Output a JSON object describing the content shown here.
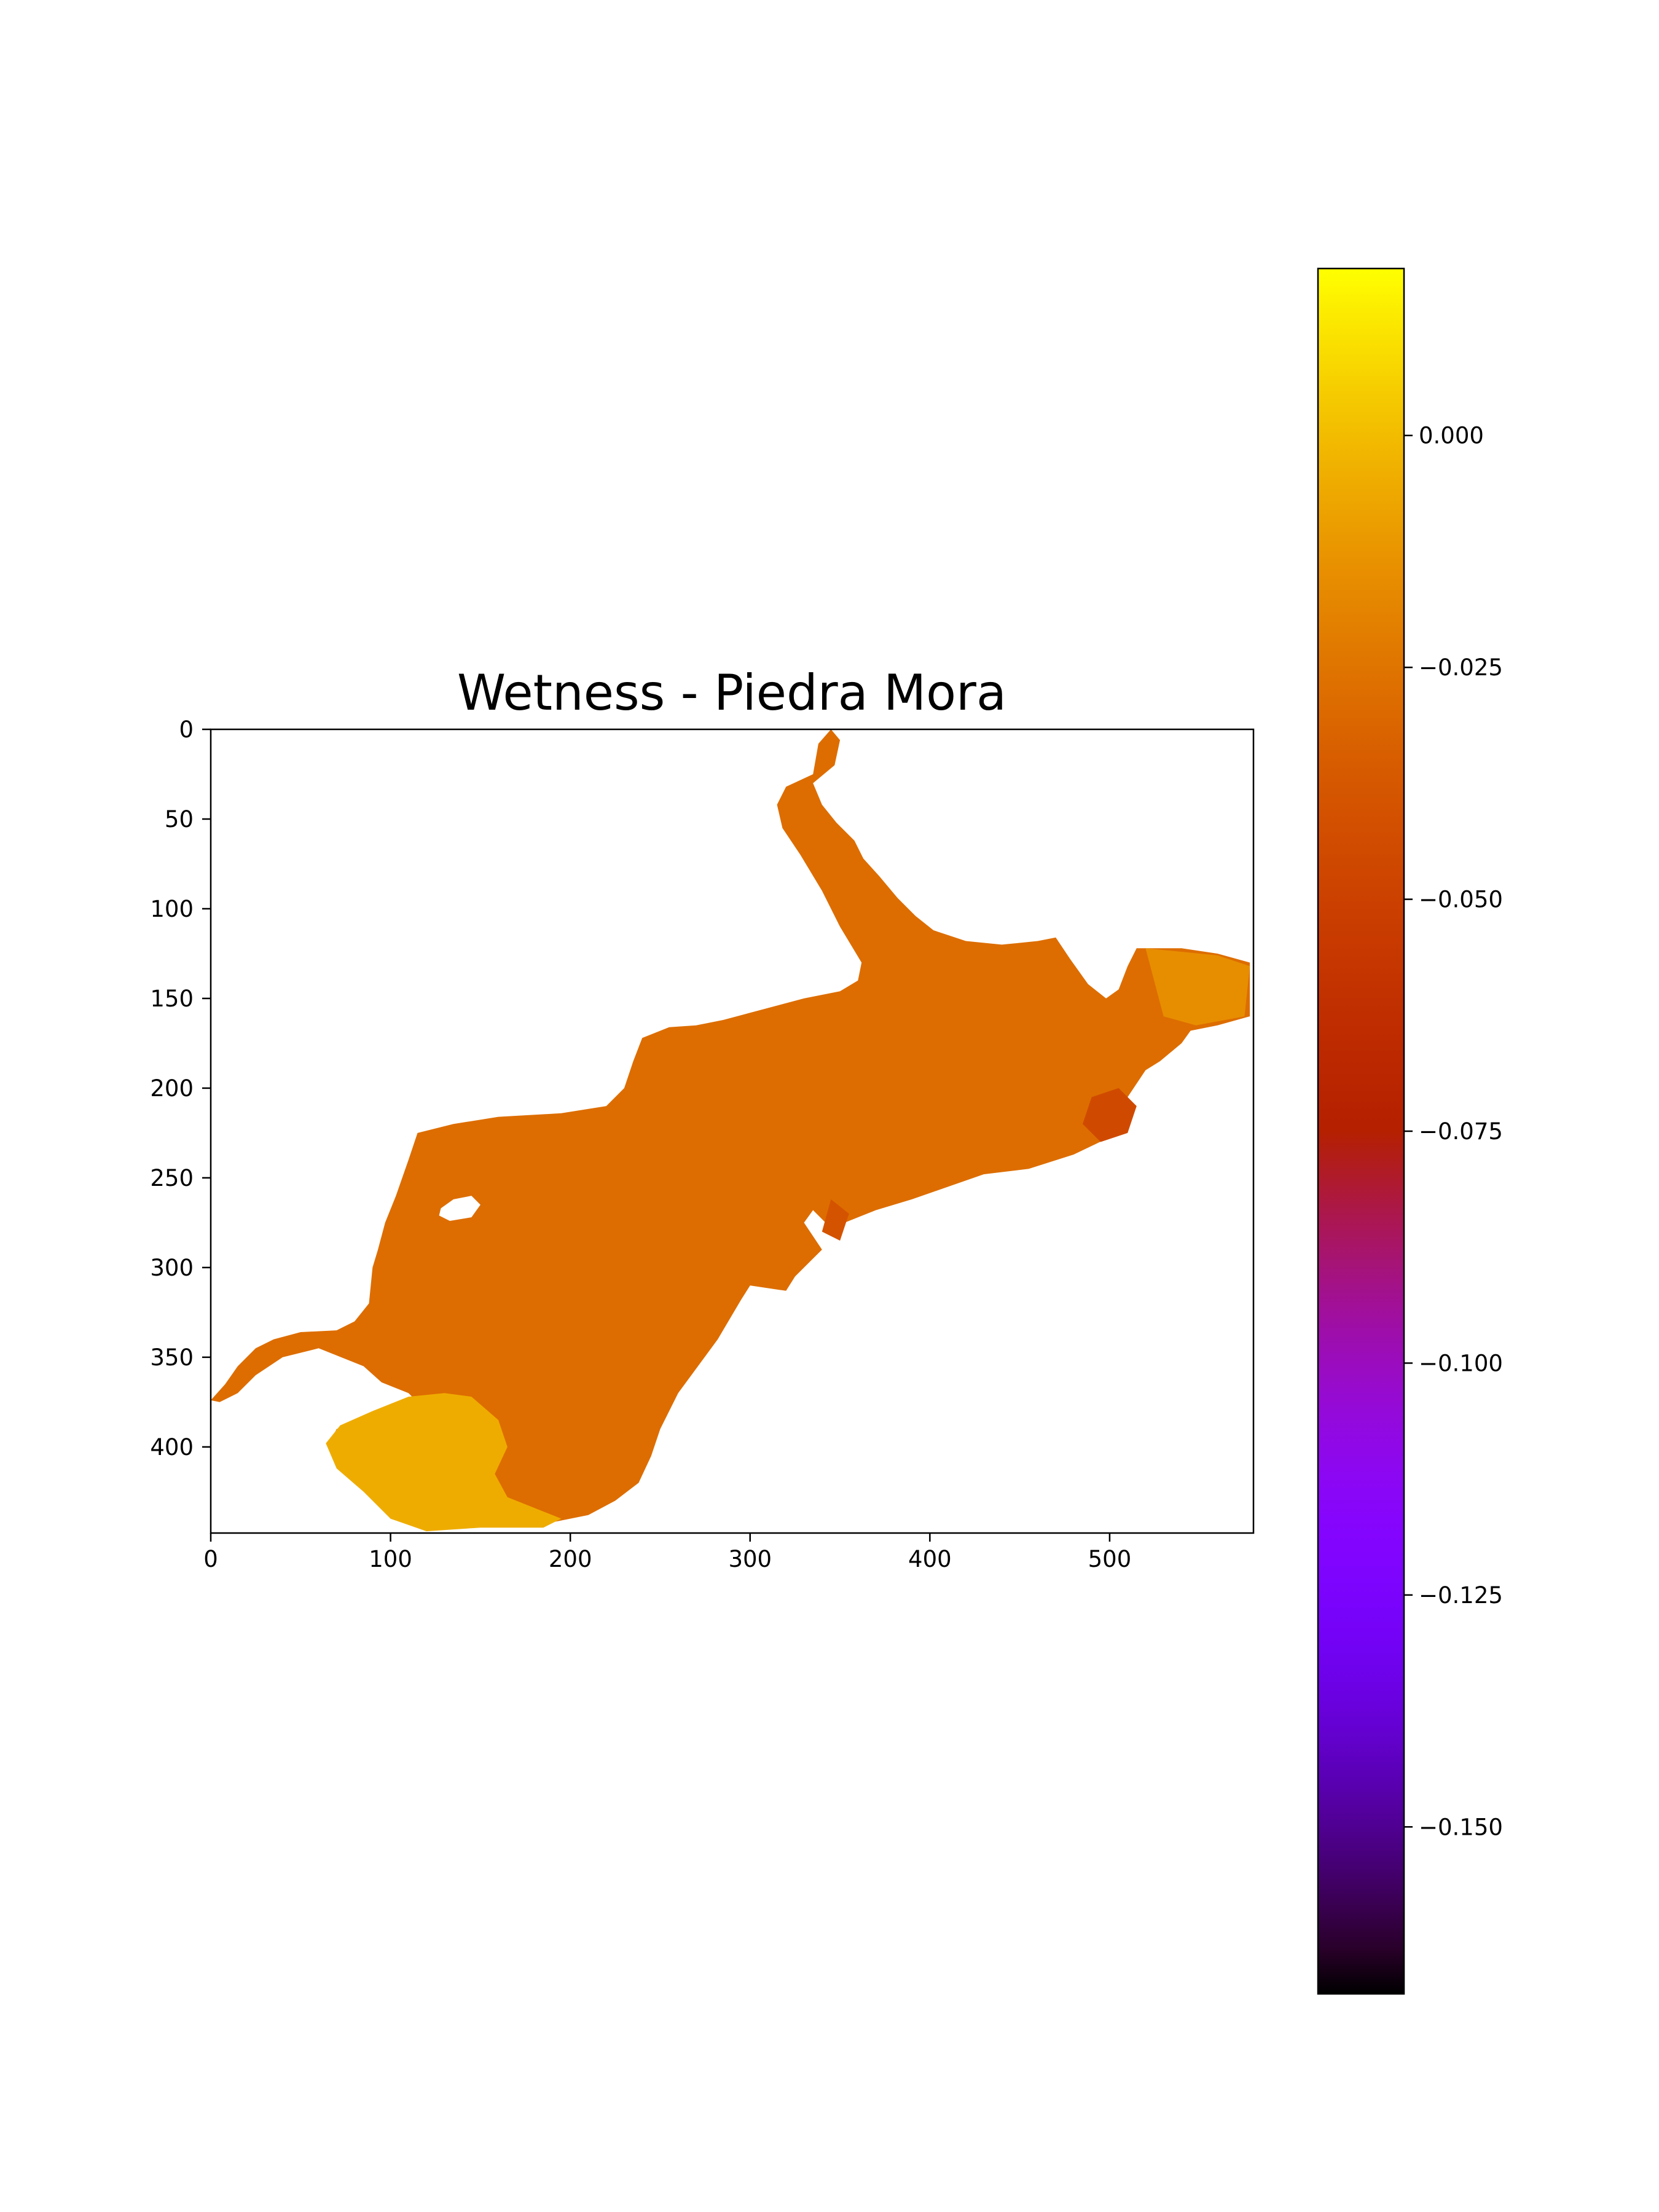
{
  "chart_data": {
    "type": "heatmap",
    "title": "Wetness - Piedra Mora",
    "xlabel": "",
    "ylabel": "",
    "x_ticks": [
      0,
      100,
      200,
      300,
      400,
      500
    ],
    "y_ticks": [
      0,
      50,
      100,
      150,
      200,
      250,
      300,
      350,
      400
    ],
    "xlim": [
      0,
      580
    ],
    "ylim": [
      448,
      0
    ],
    "colormap": "gnuplot",
    "colorbar": {
      "range": [
        -0.168,
        0.018
      ],
      "ticks": [
        0.0,
        -0.025,
        -0.05,
        -0.075,
        -0.1,
        -0.125,
        -0.15
      ],
      "tick_labels": [
        "0.000",
        "−0.025",
        "−0.050",
        "−0.075",
        "−0.100",
        "−0.125",
        "−0.150"
      ]
    },
    "typical_value": -0.025,
    "value_range": [
      -0.06,
      0.0
    ],
    "regions": [
      {
        "name": "lake-main-body",
        "value": -0.028,
        "outline": [
          [
            345,
            0
          ],
          [
            350,
            6
          ],
          [
            347,
            20
          ],
          [
            335,
            30
          ],
          [
            340,
            42
          ],
          [
            348,
            52
          ],
          [
            358,
            62
          ],
          [
            363,
            72
          ],
          [
            372,
            82
          ],
          [
            382,
            94
          ],
          [
            392,
            104
          ],
          [
            402,
            112
          ],
          [
            420,
            118
          ],
          [
            440,
            120
          ],
          [
            460,
            118
          ],
          [
            470,
            116
          ],
          [
            478,
            128
          ],
          [
            488,
            142
          ],
          [
            498,
            150
          ],
          [
            505,
            145
          ],
          [
            510,
            132
          ],
          [
            515,
            122
          ],
          [
            540,
            122
          ],
          [
            560,
            125
          ],
          [
            578,
            130
          ],
          [
            578,
            160
          ],
          [
            560,
            165
          ],
          [
            545,
            168
          ],
          [
            540,
            175
          ],
          [
            528,
            185
          ],
          [
            520,
            190
          ],
          [
            510,
            205
          ],
          [
            505,
            225
          ],
          [
            480,
            237
          ],
          [
            455,
            245
          ],
          [
            430,
            248
          ],
          [
            410,
            255
          ],
          [
            390,
            262
          ],
          [
            370,
            268
          ],
          [
            345,
            278
          ],
          [
            335,
            268
          ],
          [
            330,
            275
          ],
          [
            340,
            290
          ],
          [
            325,
            305
          ],
          [
            320,
            313
          ],
          [
            300,
            310
          ],
          [
            295,
            318
          ],
          [
            282,
            340
          ],
          [
            260,
            370
          ],
          [
            250,
            390
          ],
          [
            245,
            405
          ],
          [
            238,
            420
          ],
          [
            225,
            430
          ],
          [
            210,
            438
          ],
          [
            190,
            442
          ],
          [
            180,
            434
          ],
          [
            160,
            432
          ],
          [
            135,
            430
          ],
          [
            115,
            445
          ],
          [
            100,
            440
          ],
          [
            95,
            430
          ],
          [
            85,
            415
          ],
          [
            70,
            410
          ],
          [
            65,
            400
          ],
          [
            70,
            390
          ],
          [
            80,
            387
          ],
          [
            95,
            380
          ],
          [
            115,
            375
          ],
          [
            110,
            370
          ],
          [
            95,
            364
          ],
          [
            85,
            355
          ],
          [
            60,
            345
          ],
          [
            40,
            350
          ],
          [
            25,
            360
          ],
          [
            15,
            370
          ],
          [
            5,
            375
          ],
          [
            0,
            374
          ],
          [
            8,
            365
          ],
          [
            15,
            355
          ],
          [
            25,
            345
          ],
          [
            35,
            340
          ],
          [
            50,
            336
          ],
          [
            70,
            335
          ],
          [
            80,
            330
          ],
          [
            88,
            320
          ],
          [
            90,
            300
          ],
          [
            93,
            290
          ],
          [
            97,
            275
          ],
          [
            103,
            260
          ],
          [
            110,
            240
          ],
          [
            115,
            225
          ],
          [
            135,
            220
          ],
          [
            160,
            216
          ],
          [
            195,
            214
          ],
          [
            220,
            210
          ],
          [
            230,
            200
          ],
          [
            235,
            185
          ],
          [
            240,
            172
          ],
          [
            255,
            166
          ],
          [
            270,
            165
          ],
          [
            285,
            162
          ],
          [
            300,
            158
          ],
          [
            330,
            150
          ],
          [
            350,
            146
          ],
          [
            360,
            140
          ],
          [
            362,
            130
          ],
          [
            350,
            110
          ],
          [
            340,
            90
          ],
          [
            328,
            70
          ],
          [
            318,
            55
          ],
          [
            315,
            42
          ],
          [
            320,
            32
          ],
          [
            335,
            25
          ],
          [
            338,
            8
          ]
        ]
      },
      {
        "name": "southern-cove",
        "value": -0.005,
        "outline": [
          [
            90,
            380
          ],
          [
            110,
            372
          ],
          [
            130,
            370
          ],
          [
            145,
            372
          ],
          [
            160,
            385
          ],
          [
            165,
            400
          ],
          [
            158,
            415
          ],
          [
            165,
            428
          ],
          [
            180,
            434
          ],
          [
            195,
            440
          ],
          [
            185,
            445
          ],
          [
            150,
            445
          ],
          [
            120,
            447
          ],
          [
            100,
            440
          ],
          [
            85,
            425
          ],
          [
            70,
            412
          ],
          [
            64,
            398
          ],
          [
            72,
            388
          ]
        ]
      },
      {
        "name": "island-hole",
        "value": null,
        "outline": [
          [
            128,
            267
          ],
          [
            135,
            262
          ],
          [
            145,
            260
          ],
          [
            150,
            265
          ],
          [
            145,
            272
          ],
          [
            133,
            274
          ],
          [
            127,
            271
          ]
        ]
      },
      {
        "name": "dark-bay-east",
        "value": -0.045,
        "outline": [
          [
            490,
            205
          ],
          [
            505,
            200
          ],
          [
            515,
            210
          ],
          [
            510,
            225
          ],
          [
            495,
            230
          ],
          [
            485,
            220
          ]
        ]
      },
      {
        "name": "dark-inlet-south",
        "value": -0.04,
        "outline": [
          [
            345,
            262
          ],
          [
            355,
            270
          ],
          [
            350,
            285
          ],
          [
            340,
            280
          ]
        ]
      },
      {
        "name": "east-arm-light",
        "value": -0.015,
        "outline": [
          [
            520,
            122
          ],
          [
            560,
            126
          ],
          [
            578,
            132
          ],
          [
            575,
            160
          ],
          [
            548,
            165
          ],
          [
            530,
            160
          ]
        ]
      }
    ]
  }
}
